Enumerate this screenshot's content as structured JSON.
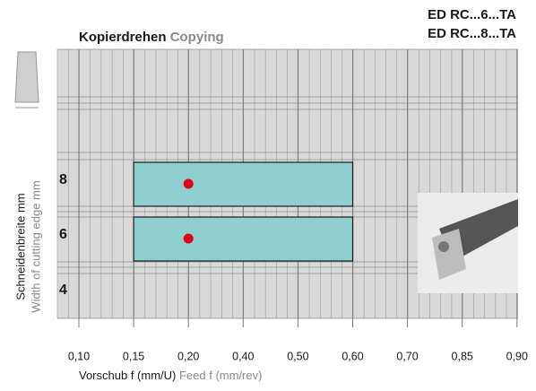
{
  "chart_data": {
    "type": "range-bar",
    "title": "Kopierdrehen",
    "title_en": "Copying",
    "product_codes": [
      "ED RC...6...TA",
      "ED RC...8...TA"
    ],
    "x_label": "Vorschub f (mm/U)",
    "x_label_en": "Feed f (mm/rev)",
    "y_label": "Schneidenbreite mm",
    "y_label_en": "Width of cutting edge mm",
    "categories": [
      "8",
      "6",
      "4"
    ],
    "ranges": [
      [
        0.15,
        0.6
      ],
      [
        0.15,
        0.6
      ],
      null
    ],
    "points": [
      0.2,
      0.2,
      null
    ],
    "range_color": "#8fcfcf",
    "point_color": "#e3001b",
    "xlim": [
      0.1,
      0.9
    ],
    "xticks": [
      {
        "value": 0.1,
        "label": "0,10"
      },
      {
        "value": 0.15,
        "label": "0,15"
      },
      {
        "value": 0.2,
        "label": "0,20"
      },
      {
        "value": 0.4,
        "label": "0,40"
      },
      {
        "value": 0.5,
        "label": "0,50"
      },
      {
        "value": 0.6,
        "label": "0,60"
      },
      {
        "value": 0.7,
        "label": "0,70"
      },
      {
        "value": 0.85,
        "label": "0,85"
      },
      {
        "value": 0.9,
        "label": "0,90"
      }
    ]
  }
}
